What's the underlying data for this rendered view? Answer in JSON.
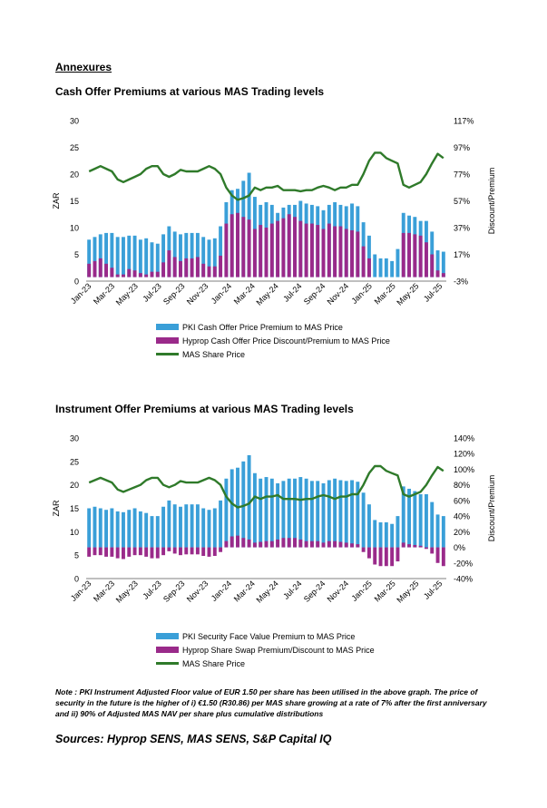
{
  "page": {
    "annex_heading": "Annexures",
    "note": "Note : PKI Instrument Adjusted Floor value of EUR 1.50 per share has been utilised in the above graph. The price of security in the future is the higher of i) €1.50 (R30.86) per MAS share growing at a rate of 7% after the first anniversary and ii) 90% of Adjusted MAS NAV per share plus cumulative distributions",
    "sources": "Sources: Hyprop SENS, MAS SENS, S&P Capital IQ"
  },
  "colors": {
    "blue": "#3a9fd8",
    "purple": "#9a2a8a",
    "green": "#2f7a2a"
  },
  "chart_data": [
    {
      "type": "bar+line",
      "title": "Cash Offer Premiums at various MAS Trading levels",
      "ylabel": "ZAR",
      "y2label": "Discount/Premium",
      "ylim": [
        0,
        30
      ],
      "y2lim": [
        -3,
        117
      ],
      "yticks": [
        "0",
        "5",
        "10",
        "15",
        "20",
        "25",
        "30"
      ],
      "y2ticks": [
        "-3%",
        "17%",
        "37%",
        "57%",
        "77%",
        "97%",
        "117%"
      ],
      "xticks": [
        "Jan-23",
        "Mar-23",
        "May-23",
        "Jul-23",
        "Sep-23",
        "Nov-23",
        "Jan-24",
        "Mar-24",
        "May-24",
        "Jul-24",
        "Sep-24",
        "Nov-24",
        "Jan-25",
        "Mar-25",
        "May-25",
        "Jul-25"
      ],
      "series": [
        {
          "name": "PKI Cash Offer Price Premium to MAS Price",
          "kind": "bar",
          "axis": "right",
          "values": [
            28,
            30,
            32,
            33,
            33,
            30,
            30,
            31,
            31,
            28,
            29,
            26,
            25,
            32,
            38,
            34,
            32,
            33,
            33,
            33,
            30,
            28,
            29,
            38,
            56,
            65,
            66,
            72,
            78,
            60,
            54,
            56,
            54,
            48,
            52,
            54,
            54,
            57,
            55,
            54,
            53,
            50,
            54,
            56,
            54,
            53,
            55,
            53,
            41,
            31,
            17,
            14,
            14,
            12,
            21,
            48,
            46,
            45,
            42,
            42,
            34,
            20,
            19
          ]
        },
        {
          "name": "Hyprop Cash Offer Price Discount/Premium to MAS Price",
          "kind": "bar",
          "axis": "right",
          "values": [
            10,
            12,
            14,
            10,
            7,
            2,
            2,
            6,
            5,
            3,
            2,
            4,
            4,
            11,
            20,
            15,
            12,
            14,
            14,
            15,
            10,
            8,
            8,
            16,
            40,
            47,
            48,
            45,
            43,
            36,
            39,
            37,
            40,
            42,
            44,
            47,
            45,
            42,
            40,
            40,
            39,
            36,
            40,
            38,
            38,
            36,
            35,
            34,
            23,
            14,
            0,
            0,
            0,
            0,
            0,
            33,
            33,
            32,
            31,
            26,
            17,
            5,
            3
          ]
        },
        {
          "name": "MAS Share Price",
          "kind": "line",
          "axis": "left",
          "values": [
            20.5,
            21,
            21.5,
            21,
            20.5,
            19,
            18.5,
            19,
            19.5,
            20,
            21,
            21.5,
            21.5,
            20,
            19.5,
            20,
            20.8,
            20.5,
            20.5,
            20.5,
            21,
            21.5,
            21,
            20,
            17.5,
            16,
            15.2,
            15.5,
            16,
            17.5,
            17,
            17.5,
            17.5,
            17.8,
            17,
            17,
            17,
            16.8,
            17,
            17,
            17.5,
            17.8,
            17.5,
            17,
            17.5,
            17.5,
            18,
            18,
            20,
            22.5,
            24,
            24,
            23,
            22.5,
            22,
            18,
            17.5,
            18,
            18.5,
            20,
            22,
            23.8,
            23
          ]
        }
      ]
    },
    {
      "type": "bar+line",
      "title": "Instrument Offer Premiums at various MAS Trading levels",
      "ylabel": "ZAR",
      "y2label": "Discount/Premium",
      "ylim": [
        0,
        30
      ],
      "y2lim": [
        -40,
        140
      ],
      "yticks": [
        "0",
        "5",
        "10",
        "15",
        "20",
        "25",
        "30"
      ],
      "y2ticks": [
        "-40%",
        "-20%",
        "0%",
        "20%",
        "40%",
        "60%",
        "80%",
        "100%",
        "120%",
        "140%"
      ],
      "xticks": [
        "Jan-23",
        "Mar-23",
        "May-23",
        "Jul-23",
        "Sep-23",
        "Nov-23",
        "Jan-24",
        "Mar-24",
        "May-24",
        "Jul-24",
        "Sep-24",
        "Nov-24",
        "Jan-25",
        "Mar-25",
        "May-25",
        "Jul-25"
      ],
      "series": [
        {
          "name": "PKI Security Face Value Premium to MAS Price",
          "kind": "bar",
          "axis": "right",
          "values": [
            50,
            52,
            50,
            48,
            50,
            46,
            45,
            48,
            50,
            46,
            44,
            40,
            40,
            52,
            60,
            55,
            52,
            55,
            55,
            55,
            50,
            48,
            50,
            60,
            88,
            100,
            102,
            110,
            118,
            95,
            88,
            90,
            88,
            82,
            85,
            88,
            88,
            90,
            88,
            85,
            85,
            82,
            86,
            88,
            86,
            85,
            86,
            84,
            70,
            55,
            35,
            32,
            32,
            30,
            40,
            78,
            75,
            72,
            68,
            68,
            58,
            42,
            40
          ]
        },
        {
          "name": "Hyprop Share Swap Premium/Discount to MAS Price",
          "kind": "bar",
          "axis": "right",
          "values": [
            -12,
            -10,
            -10,
            -12,
            -12,
            -14,
            -15,
            -12,
            -10,
            -10,
            -12,
            -14,
            -14,
            -10,
            -5,
            -8,
            -10,
            -9,
            -9,
            -9,
            -11,
            -12,
            -11,
            -6,
            8,
            14,
            15,
            12,
            10,
            6,
            7,
            8,
            8,
            10,
            12,
            12,
            12,
            10,
            8,
            8,
            8,
            6,
            8,
            8,
            7,
            6,
            5,
            4,
            -6,
            -14,
            -22,
            -24,
            -24,
            -24,
            -18,
            6,
            4,
            3,
            2,
            -2,
            -8,
            -20,
            -24
          ]
        },
        {
          "name": "MAS Share Price",
          "kind": "line",
          "axis": "left",
          "values": [
            20.5,
            21,
            21.5,
            21,
            20.5,
            19,
            18.5,
            19,
            19.5,
            20,
            21,
            21.5,
            21.5,
            20,
            19.5,
            20,
            20.8,
            20.5,
            20.5,
            20.5,
            21,
            21.5,
            21,
            20,
            17.5,
            16,
            15.2,
            15.5,
            16,
            17.5,
            17,
            17.5,
            17.5,
            17.8,
            17,
            17,
            17,
            16.8,
            17,
            17,
            17.5,
            17.8,
            17.5,
            17,
            17.5,
            17.5,
            18,
            18,
            20,
            22.5,
            24,
            24,
            23,
            22.5,
            22,
            18,
            17.5,
            18,
            18.5,
            20,
            22,
            23.8,
            23
          ]
        }
      ]
    }
  ]
}
